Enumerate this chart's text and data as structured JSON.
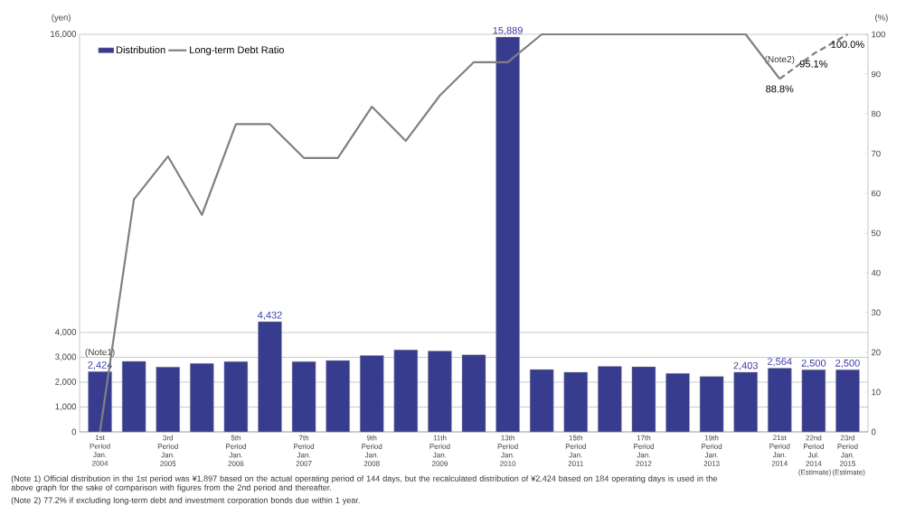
{
  "chart_data": {
    "type": "bar",
    "categories": [
      "1st Period Jan. 2004",
      null,
      "3rd Period Jan. 2005",
      null,
      "5th Period Jan. 2006",
      null,
      "7th Period Jan. 2007",
      null,
      "9th Period Jan. 2008",
      null,
      "11th Period Jan. 2009",
      null,
      "13th Period Jan. 2010",
      null,
      "15th Period Jan. 2011",
      null,
      "17th Period Jan. 2012",
      null,
      "19th Period Jan. 2013",
      null,
      "21st Period Jan. 2014",
      "22nd Period Jul. 2014 (Estimate)",
      "23rd Period Jan. 2015 (Estimate)"
    ],
    "series": [
      {
        "name": "Distribution",
        "color": "#383c8e",
        "values": [
          2424,
          2840,
          2610,
          2750,
          2830,
          4432,
          2830,
          2870,
          3070,
          3300,
          3250,
          3100,
          15889,
          2510,
          2400,
          2640,
          2620,
          2350,
          2230,
          2403,
          2564,
          2500,
          2500
        ],
        "value_labels": [
          "2,424",
          null,
          null,
          null,
          null,
          "4,432",
          null,
          null,
          null,
          null,
          null,
          null,
          "15,889",
          null,
          null,
          null,
          null,
          null,
          null,
          "2,403",
          "2,564",
          "2,500",
          "2,500"
        ]
      },
      {
        "name": "Long-term Debt Ratio",
        "type": "line",
        "axis": "y2",
        "color": "#808080",
        "values": [
          0,
          58.5,
          69.3,
          54.6,
          77.4,
          77.4,
          68.9,
          68.9,
          81.8,
          73.2,
          84.6,
          93,
          93,
          100,
          100,
          100,
          100,
          100,
          100,
          100,
          88.8,
          null,
          null
        ]
      },
      {
        "type": "line",
        "axis": "y2",
        "color": "#808080",
        "line_style": "dashed",
        "values": [
          null,
          null,
          null,
          null,
          null,
          null,
          null,
          null,
          null,
          null,
          null,
          null,
          null,
          null,
          null,
          null,
          null,
          null,
          null,
          null,
          88.8,
          95.1,
          100
        ],
        "value_labels": [
          null,
          null,
          null,
          null,
          null,
          null,
          null,
          null,
          null,
          null,
          null,
          null,
          null,
          null,
          null,
          null,
          null,
          null,
          null,
          null,
          "88.8%",
          "95.1%",
          "100.0%"
        ]
      }
    ],
    "ylabel": "(yen)",
    "y2label": "(%)",
    "ylim": [
      0,
      16000
    ],
    "yticks": [
      0,
      {
        "value": 1000,
        "label": "1,000"
      },
      {
        "value": 2000,
        "label": "2,000"
      },
      {
        "value": 3000,
        "label": "3,000"
      },
      {
        "value": 4000,
        "label": "4,000"
      },
      {
        "value": 16000,
        "label": "16,000"
      }
    ],
    "y2lim": [
      0,
      100
    ],
    "y2ticks": [
      0,
      10,
      20,
      30,
      40,
      50,
      60,
      70,
      80,
      90,
      100
    ],
    "grid": "y",
    "legend": "top left",
    "marker": "none",
    "line_style": "solid",
    "annotations": [
      {
        "text": "(Note1)",
        "x": "1st Period Jan. 2004",
        "y": 2424
      },
      {
        "text": "(Note2)",
        "x": "21st Period Jan. 2014",
        "y": 14208
      },
      "(Note 1) Official distribution in the 1st period was ¥1,897 based on the actual operating period of 144 days, but the recalculated distribution of ¥2,424 based on 184 operating days is used in the above graph for the sake of comparison with figures from the 2nd period and thereafter.",
      "(Note 2) 77.2% if excluding long-term debt and investment corporation bonds due within 1 year."
    ]
  }
}
